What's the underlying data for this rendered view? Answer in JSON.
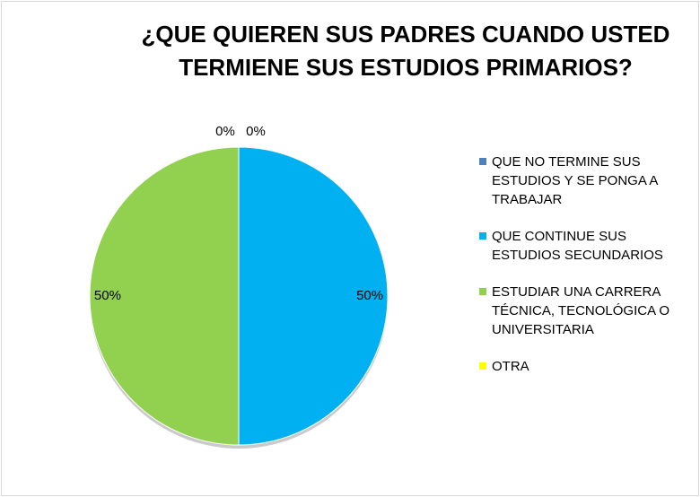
{
  "chart_data": {
    "type": "pie",
    "title": [
      "¿QUE QUIEREN SUS PADRES CUANDO USTED",
      "TERMIENE SUS ESTUDIOS PRIMARIOS?"
    ],
    "categories": [
      "QUE NO TERMINE SUS ESTUDIOS Y SE PONGA A TRABAJAR",
      "QUE CONTINUE SUS ESTUDIOS SECUNDARIOS",
      "ESTUDIAR UNA CARRERA TÉCNICA, TECNOLÓGICA O UNIVERSITARIA",
      "OTRA"
    ],
    "values": [
      0,
      50,
      50,
      0
    ],
    "value_labels": [
      "0%",
      "50%",
      "50%",
      "0%"
    ],
    "colors": [
      "#4f81bd",
      "#00b0f0",
      "#92d050",
      "#ffff00"
    ],
    "legend": "right"
  }
}
